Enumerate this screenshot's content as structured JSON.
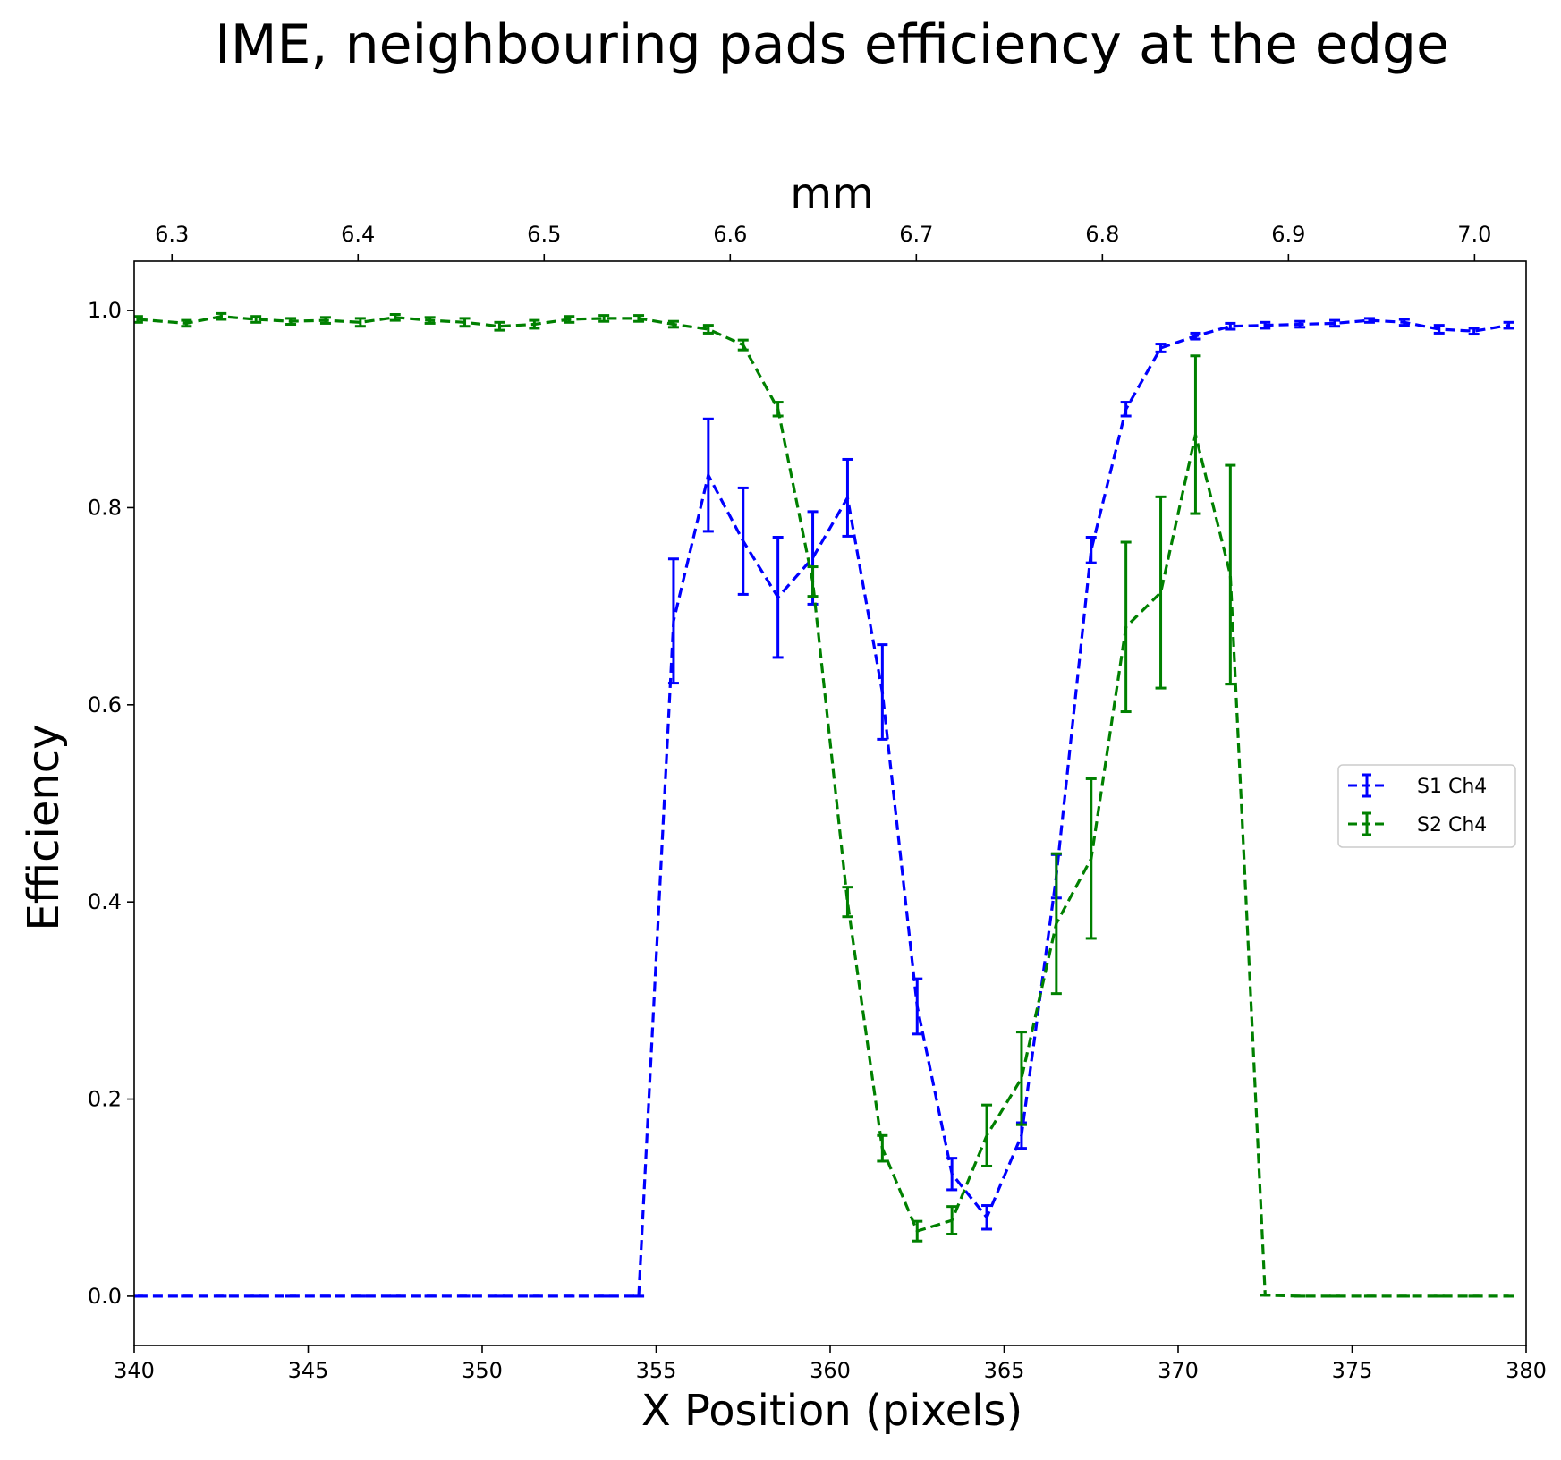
{
  "chart_data": {
    "type": "line",
    "title": "IME, neighbouring pads efficiency at the edge",
    "xlabel": "X Position (pixels)",
    "ylabel": "Efficiency",
    "top_xlabel": "mm",
    "xlim": [
      340,
      380
    ],
    "ylim": [
      -0.05,
      1.05
    ],
    "top_xlim": [
      6.2797,
      7.0277
    ],
    "x_ticks": [
      "340",
      "345",
      "350",
      "355",
      "360",
      "365",
      "370",
      "375",
      "380"
    ],
    "y_ticks": [
      "0.0",
      "0.2",
      "0.4",
      "0.6",
      "0.8",
      "1.0"
    ],
    "top_ticks": [
      "6.3",
      "6.4",
      "6.5",
      "6.6",
      "6.7",
      "6.8",
      "6.9",
      "7.0"
    ],
    "grid": false,
    "legend_position": "center-right",
    "line_style": "dashed with error bars",
    "series": [
      {
        "name": "S1 Ch4",
        "color": "#0000ff",
        "x": [
          340.1,
          341.5,
          342.5,
          343.5,
          344.5,
          345.5,
          346.5,
          347.5,
          348.5,
          349.5,
          350.5,
          351.5,
          352.5,
          353.5,
          354.5,
          355.5,
          356.5,
          357.5,
          358.5,
          359.5,
          360.5,
          361.5,
          362.5,
          363.5,
          364.5,
          365.5,
          366.5,
          367.5,
          368.5,
          369.5,
          370.5,
          371.5,
          372.5,
          373.5,
          374.5,
          375.5,
          376.5,
          377.5,
          378.5,
          379.5
        ],
        "y": [
          0.0,
          0.0,
          0.0,
          0.0,
          0.0,
          0.0,
          0.0,
          0.0,
          0.0,
          0.0,
          0.0,
          0.0,
          0.0,
          0.0,
          0.0,
          0.685,
          0.833,
          0.766,
          0.709,
          0.749,
          0.81,
          0.613,
          0.294,
          0.124,
          0.08,
          0.163,
          0.426,
          0.757,
          0.9,
          0.962,
          0.974,
          0.984,
          0.985,
          0.986,
          0.987,
          0.99,
          0.988,
          0.981,
          0.979,
          0.985
        ],
        "yerr": [
          0.0,
          0.0,
          0.0,
          0.0,
          0.0,
          0.0,
          0.0,
          0.0,
          0.0,
          0.0,
          0.0,
          0.0,
          0.0,
          0.0,
          0.0,
          0.063,
          0.057,
          0.054,
          0.061,
          0.047,
          0.039,
          0.048,
          0.028,
          0.016,
          0.012,
          0.013,
          0.022,
          0.013,
          0.007,
          0.004,
          0.003,
          0.003,
          0.003,
          0.003,
          0.003,
          0.002,
          0.003,
          0.004,
          0.003,
          0.003
        ]
      },
      {
        "name": "S2 Ch4",
        "color": "#008000",
        "x": [
          340.1,
          341.5,
          342.5,
          343.5,
          344.5,
          345.5,
          346.5,
          347.5,
          348.5,
          349.5,
          350.5,
          351.5,
          352.5,
          353.5,
          354.5,
          355.5,
          356.5,
          357.5,
          358.5,
          359.5,
          360.5,
          361.5,
          362.5,
          363.5,
          364.5,
          365.5,
          366.5,
          367.5,
          368.5,
          369.5,
          370.5,
          371.5,
          372.5,
          373.5,
          374.5,
          375.5,
          376.5,
          377.5,
          378.5,
          379.5
        ],
        "y": [
          0.991,
          0.987,
          0.994,
          0.991,
          0.989,
          0.99,
          0.988,
          0.993,
          0.99,
          0.988,
          0.984,
          0.986,
          0.991,
          0.992,
          0.992,
          0.986,
          0.981,
          0.965,
          0.9,
          0.725,
          0.4,
          0.15,
          0.066,
          0.077,
          0.163,
          0.221,
          0.378,
          0.444,
          0.679,
          0.714,
          0.874,
          0.732,
          0.001,
          0.0,
          0.0,
          0.0,
          0.0,
          0.0,
          0.0,
          0.0
        ],
        "yerr": [
          0.003,
          0.003,
          0.003,
          0.003,
          0.003,
          0.003,
          0.004,
          0.003,
          0.003,
          0.004,
          0.004,
          0.004,
          0.003,
          0.003,
          0.003,
          0.003,
          0.004,
          0.005,
          0.007,
          0.015,
          0.015,
          0.013,
          0.01,
          0.014,
          0.031,
          0.047,
          0.071,
          0.081,
          0.086,
          0.097,
          0.08,
          0.111,
          0.0,
          0.0,
          0.0,
          0.0,
          0.0,
          0.0,
          0.0,
          0.0
        ]
      }
    ]
  }
}
